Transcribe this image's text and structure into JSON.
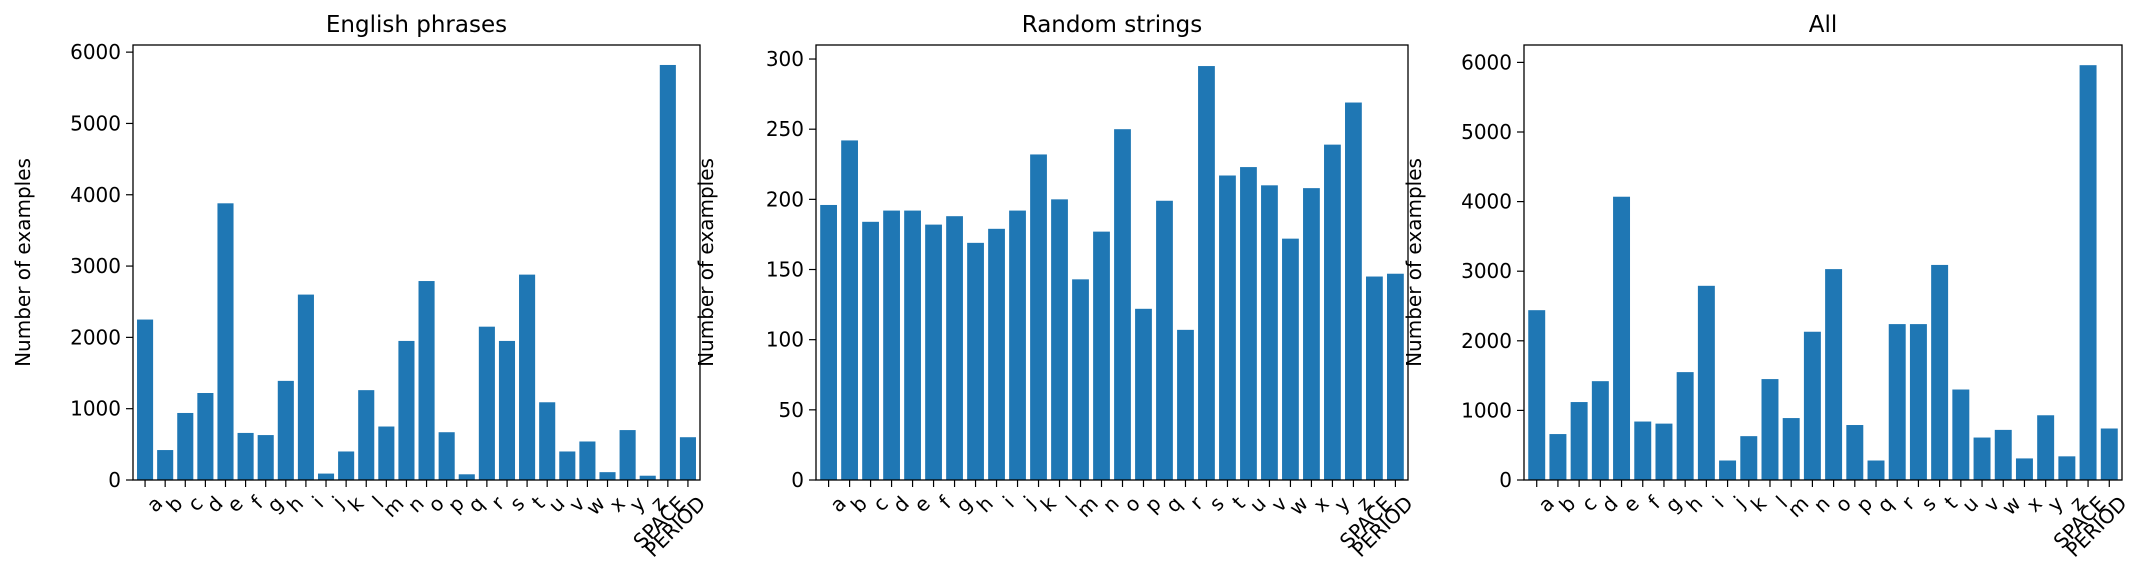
{
  "chart_data": [
    {
      "type": "bar",
      "title": "English phrases",
      "xlabel": "",
      "ylabel": "Number of examples",
      "ylim": [
        0,
        6100
      ],
      "yticks": [
        0,
        1000,
        2000,
        3000,
        4000,
        5000,
        6000
      ],
      "categories": [
        "a",
        "b",
        "c",
        "d",
        "e",
        "f",
        "g",
        "h",
        "i",
        "j",
        "k",
        "l",
        "m",
        "n",
        "o",
        "p",
        "q",
        "r",
        "s",
        "t",
        "u",
        "v",
        "w",
        "x",
        "y",
        "z",
        "SPACE",
        "PERIOD"
      ],
      "values": [
        2250,
        420,
        940,
        1220,
        3880,
        660,
        630,
        1390,
        2600,
        90,
        400,
        1260,
        750,
        1950,
        2790,
        670,
        80,
        2150,
        1950,
        2880,
        1090,
        400,
        540,
        110,
        700,
        60,
        5820,
        600
      ],
      "color": "#1f77b4"
    },
    {
      "type": "bar",
      "title": "Random strings",
      "xlabel": "",
      "ylabel": "Number of examples",
      "ylim": [
        0,
        310
      ],
      "yticks": [
        0,
        50,
        100,
        150,
        200,
        250,
        300
      ],
      "categories": [
        "a",
        "b",
        "c",
        "d",
        "e",
        "f",
        "g",
        "h",
        "i",
        "j",
        "k",
        "l",
        "m",
        "n",
        "o",
        "p",
        "q",
        "r",
        "s",
        "t",
        "u",
        "v",
        "w",
        "x",
        "y",
        "z",
        "SPACE",
        "PERIOD"
      ],
      "values": [
        196,
        242,
        184,
        192,
        192,
        182,
        188,
        169,
        179,
        192,
        232,
        200,
        143,
        177,
        250,
        122,
        199,
        107,
        295,
        217,
        223,
        210,
        172,
        208,
        239,
        269,
        145,
        147
      ],
      "color": "#1f77b4"
    },
    {
      "type": "bar",
      "title": "All",
      "xlabel": "",
      "ylabel": "Number of examples",
      "ylim": [
        0,
        6250
      ],
      "yticks": [
        0,
        1000,
        2000,
        3000,
        4000,
        5000,
        6000
      ],
      "categories": [
        "a",
        "b",
        "c",
        "d",
        "e",
        "f",
        "g",
        "h",
        "i",
        "j",
        "k",
        "l",
        "m",
        "n",
        "o",
        "p",
        "q",
        "r",
        "s",
        "t",
        "u",
        "v",
        "w",
        "x",
        "y",
        "z",
        "SPACE",
        "PERIOD"
      ],
      "values": [
        2440,
        660,
        1120,
        1420,
        4070,
        840,
        810,
        1550,
        2790,
        280,
        630,
        1450,
        890,
        2130,
        3030,
        790,
        280,
        2240,
        2240,
        3090,
        1300,
        610,
        720,
        310,
        930,
        340,
        5960,
        740
      ],
      "color": "#1f77b4"
    }
  ]
}
